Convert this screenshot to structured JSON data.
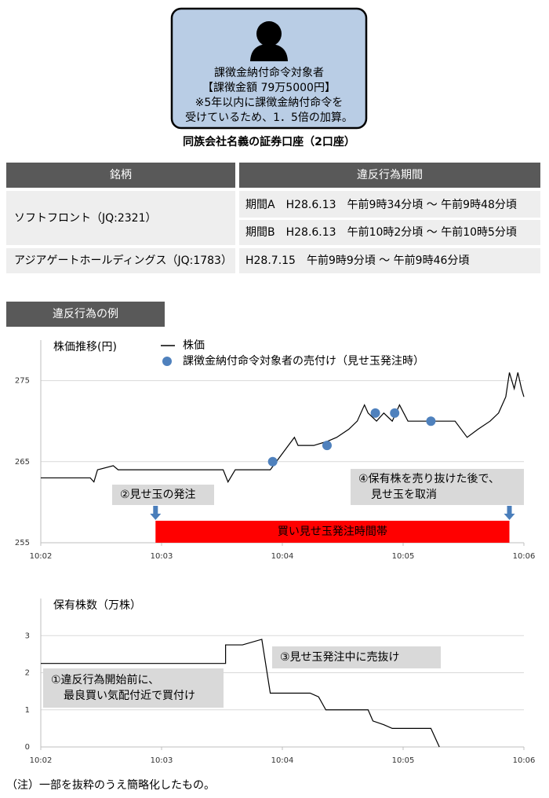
{
  "person_box": {
    "lines": [
      "課徴金納付命令対象者",
      "【課徴金額 79万5000円】",
      "※5年以内に課徴金納付命令を",
      "受けているため、1．5倍の加算。"
    ]
  },
  "account_label": "同族会社名義の証券口座（2口座）",
  "table": {
    "headers": [
      "銘柄",
      "違反行為期間"
    ],
    "rows": [
      {
        "stock": "ソフトフロント（JQ:2321）",
        "periods": [
          "期間A　H28.6.13　午前9時34分頃 〜 午前9時48分頃",
          "期間B　H28.6.13　午前10時2分頃 〜 午前10時5分頃"
        ]
      },
      {
        "stock": "アジアゲートホールディングス（JQ:1783）",
        "periods": [
          "H28.7.15　午前9時9分頃 〜 午前9時46分頃"
        ]
      }
    ]
  },
  "section_title": "違反行為の例",
  "chart_data": [
    {
      "type": "line",
      "ylabel": "株価推移(円)",
      "xlim": [
        2,
        6
      ],
      "xticks": [
        {
          "value": 2,
          "label": "10:02"
        },
        {
          "value": 3,
          "label": "10:03"
        },
        {
          "value": 4,
          "label": "10:04"
        },
        {
          "value": 5,
          "label": "10:05"
        },
        {
          "value": 6,
          "label": "10:06"
        }
      ],
      "ylim": [
        255,
        280
      ],
      "yticks": [
        255,
        265,
        275
      ],
      "grid": true,
      "series": [
        {
          "name": "株価",
          "type": "line",
          "color": "#000000",
          "x": [
            2.0,
            2.41,
            2.44,
            2.47,
            2.6,
            2.64,
            3.51,
            3.55,
            3.61,
            3.9,
            4.0,
            4.05,
            4.1,
            4.13,
            4.26,
            4.37,
            4.45,
            4.55,
            4.62,
            4.68,
            4.71,
            4.78,
            4.84,
            4.91,
            4.97,
            5.04,
            5.17,
            5.3,
            5.43,
            5.53,
            5.62,
            5.72,
            5.79,
            5.85,
            5.88,
            5.92,
            5.95,
            5.98,
            6.0
          ],
          "values": [
            263,
            263,
            262.5,
            264,
            264.5,
            264,
            264,
            262.5,
            264,
            264,
            266,
            267,
            268,
            267,
            267,
            267.5,
            268,
            269,
            270,
            272,
            271,
            270,
            271,
            270,
            272,
            270,
            270,
            270,
            270,
            268,
            269,
            270,
            271,
            273,
            276,
            274,
            276,
            274,
            273
          ]
        },
        {
          "name": "課徴金納付命令対象者の売付け（見せ玉発注時）",
          "type": "scatter",
          "color": "#4f81bd",
          "x": [
            3.92,
            4.37,
            4.77,
            4.93,
            5.23
          ],
          "values": [
            265,
            267,
            271,
            271,
            270
          ]
        }
      ],
      "highlight": {
        "label": "買い見せ玉発注時間帯",
        "x": [
          2.95,
          5.88
        ],
        "color": "#ff0000"
      },
      "annotations": [
        [
          "②見せ玉の発注"
        ],
        [
          "④保有株を売り抜けた後で、",
          "見せ玉を取消"
        ]
      ]
    },
    {
      "type": "line",
      "ylabel": "保有株数（万株）",
      "xlim": [
        2,
        6
      ],
      "xticks": [
        {
          "value": 2,
          "label": "10:02"
        },
        {
          "value": 3,
          "label": "10:03"
        },
        {
          "value": 4,
          "label": "10:04"
        },
        {
          "value": 5,
          "label": "10:05"
        },
        {
          "value": 6,
          "label": "10:06"
        }
      ],
      "ylim": [
        0,
        4
      ],
      "yticks": [
        0,
        1,
        2,
        3
      ],
      "grid": true,
      "series": [
        {
          "type": "line",
          "color": "#000000",
          "x": [
            2.0,
            3.53,
            3.53,
            3.67,
            3.83,
            3.9,
            4.23,
            4.3,
            4.36,
            4.71,
            4.75,
            4.84,
            4.91,
            5.23,
            5.3
          ],
          "values": [
            2.25,
            2.25,
            2.75,
            2.75,
            2.9,
            1.45,
            1.45,
            1.35,
            1.0,
            1.0,
            0.7,
            0.6,
            0.5,
            0.5,
            0
          ]
        }
      ],
      "annotations": [
        [
          "③見せ玉発注中に売抜け"
        ],
        [
          "①違反行為開始前に、",
          "最良買い気配付近で買付け"
        ]
      ]
    }
  ],
  "note": "（注）一部を抜粋のうえ簡略化したもの。"
}
